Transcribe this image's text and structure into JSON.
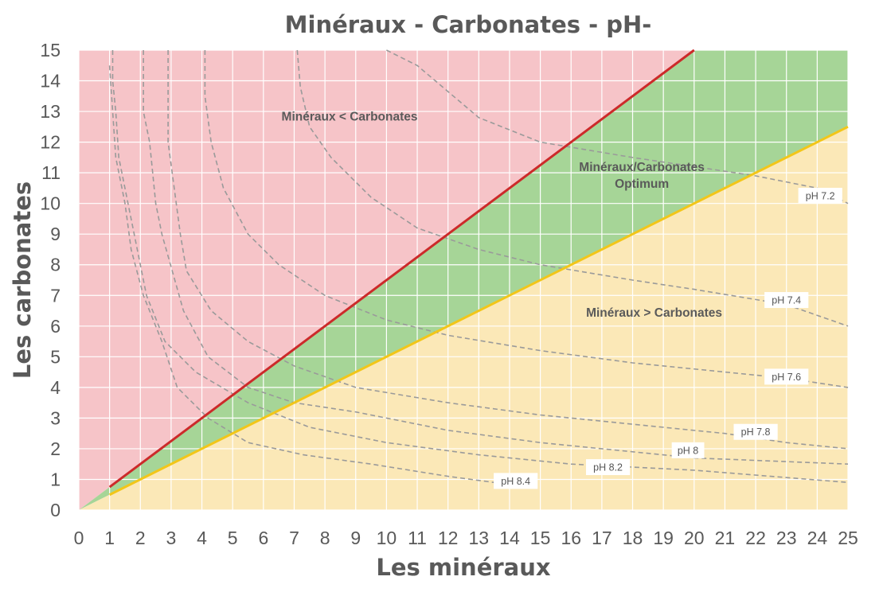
{
  "chart_data": {
    "type": "area",
    "title": "Minéraux - Carbonates - pH-",
    "xlabel": "Les minéraux",
    "ylabel": "Les carbonates",
    "xlim": [
      0,
      25
    ],
    "ylim": [
      0,
      15
    ],
    "x_ticks": [
      0,
      1,
      2,
      3,
      4,
      5,
      6,
      7,
      8,
      9,
      10,
      11,
      12,
      13,
      14,
      15,
      16,
      17,
      18,
      19,
      20,
      21,
      22,
      23,
      24,
      25
    ],
    "y_ticks": [
      0,
      1,
      2,
      3,
      4,
      5,
      6,
      7,
      8,
      9,
      10,
      11,
      12,
      13,
      14,
      15
    ],
    "grid": true,
    "colors": {
      "region_high_carbonates": "#f6c4c8",
      "region_optimum": "#a6d597",
      "region_high_minerals": "#fbe8b7",
      "upper_boundary": "#cc2a2a",
      "lower_boundary": "#f2c619",
      "ph_curves": "#9a9a9a",
      "grid": "#ffffff"
    },
    "boundaries": [
      {
        "slope": 0.75,
        "x_from": 1,
        "x_to": 20,
        "color": "#cc2a2a"
      },
      {
        "slope": 0.5,
        "x_from": 1,
        "x_to": 25,
        "color": "#f2c619"
      }
    ],
    "regions": [
      {
        "label": "Minéraux < Carbonates",
        "x": 8.8,
        "y": 12.7,
        "lines": [
          "Minéraux < Carbonates"
        ]
      },
      {
        "label": "Minéraux/Carbonates Optimum",
        "x": 18.3,
        "y": 11.05,
        "lines": [
          "Minéraux/Carbonates",
          "Optimum"
        ]
      },
      {
        "label": "Minéraux > Carbonates",
        "x": 18.7,
        "y": 6.3,
        "lines": [
          "Minéraux > Carbonates"
        ]
      }
    ],
    "series": [
      {
        "name": "pH 7.2",
        "label_at": [
          24.1,
          10.25
        ],
        "points": [
          [
            10,
            15
          ],
          [
            11,
            14.5
          ],
          [
            13,
            12.8
          ],
          [
            15,
            12
          ],
          [
            18,
            11.5
          ],
          [
            20,
            11.2
          ],
          [
            22,
            10.9
          ],
          [
            24,
            10.5
          ],
          [
            25,
            10
          ]
        ]
      },
      {
        "name": "pH 7.4",
        "label_at": [
          23,
          6.85
        ],
        "points": [
          [
            7.1,
            15
          ],
          [
            7.2,
            13.8
          ],
          [
            7.5,
            12.5
          ],
          [
            8.2,
            11.5
          ],
          [
            9.5,
            10.2
          ],
          [
            11,
            9.2
          ],
          [
            13,
            8.5
          ],
          [
            15,
            8
          ],
          [
            18,
            7.5
          ],
          [
            20,
            7.2
          ],
          [
            23,
            6.7
          ],
          [
            25,
            6
          ]
        ]
      },
      {
        "name": "pH 7.6",
        "label_at": [
          23,
          4.35
        ],
        "points": [
          [
            4.1,
            15
          ],
          [
            4.1,
            13.5
          ],
          [
            4.3,
            12
          ],
          [
            4.7,
            10.5
          ],
          [
            5.5,
            9
          ],
          [
            6.5,
            8
          ],
          [
            8,
            7
          ],
          [
            10,
            6.2
          ],
          [
            12,
            5.7
          ],
          [
            15,
            5.2
          ],
          [
            18,
            4.8
          ],
          [
            20,
            4.6
          ],
          [
            23,
            4.3
          ],
          [
            25,
            4
          ]
        ]
      },
      {
        "name": "pH 7.8",
        "label_at": [
          22,
          2.55
        ],
        "points": [
          [
            2.9,
            15
          ],
          [
            2.9,
            13.5
          ],
          [
            2.9,
            12
          ],
          [
            3.1,
            10.5
          ],
          [
            3.3,
            9
          ],
          [
            3.5,
            7.8
          ],
          [
            4.3,
            6.5
          ],
          [
            5.5,
            5.5
          ],
          [
            7,
            4.7
          ],
          [
            9,
            4
          ],
          [
            12,
            3.5
          ],
          [
            15,
            3.1
          ],
          [
            18,
            2.8
          ],
          [
            21,
            2.5
          ],
          [
            23,
            2.2
          ],
          [
            25,
            2
          ]
        ]
      },
      {
        "name": "pH 8",
        "label_at": [
          19.8,
          1.95
        ],
        "points": [
          [
            2.1,
            15
          ],
          [
            2.1,
            14
          ],
          [
            2.1,
            13
          ],
          [
            2.3,
            12
          ],
          [
            2.5,
            10
          ],
          [
            2.7,
            9
          ],
          [
            3.4,
            6.5
          ],
          [
            4.2,
            5
          ],
          [
            5.5,
            4
          ],
          [
            7,
            3.5
          ],
          [
            9,
            3.2
          ],
          [
            12,
            2.6
          ],
          [
            15,
            2.2
          ],
          [
            20,
            1.7
          ],
          [
            25,
            1.5
          ]
        ]
      },
      {
        "name": "pH 8.2",
        "label_at": [
          17.2,
          1.4
        ],
        "points": [
          [
            1.1,
            15
          ],
          [
            1.1,
            14
          ],
          [
            1.2,
            13
          ],
          [
            1.3,
            11.5
          ],
          [
            1.6,
            10
          ],
          [
            1.9,
            8.5
          ],
          [
            2.2,
            7
          ],
          [
            2.8,
            5.5
          ],
          [
            3.8,
            4.5
          ],
          [
            5.5,
            3.5
          ],
          [
            7.5,
            2.7
          ],
          [
            10,
            2.2
          ],
          [
            13,
            1.8
          ],
          [
            16,
            1.5
          ],
          [
            20,
            1.3
          ],
          [
            25,
            0.9
          ]
        ]
      },
      {
        "name": "pH 8.4",
        "label_at": [
          14.2,
          0.95
        ],
        "points": [
          [
            1,
            14.5
          ],
          [
            1.1,
            13
          ],
          [
            1.2,
            11.5
          ],
          [
            1.5,
            10
          ],
          [
            1.7,
            8.5
          ],
          [
            2.1,
            7
          ],
          [
            2.7,
            5.5
          ],
          [
            3.2,
            4
          ],
          [
            4.2,
            3
          ],
          [
            5.5,
            2.2
          ],
          [
            7.3,
            1.8
          ],
          [
            9.5,
            1.5
          ],
          [
            12,
            1.1
          ],
          [
            13.5,
            0.9
          ]
        ]
      }
    ]
  }
}
